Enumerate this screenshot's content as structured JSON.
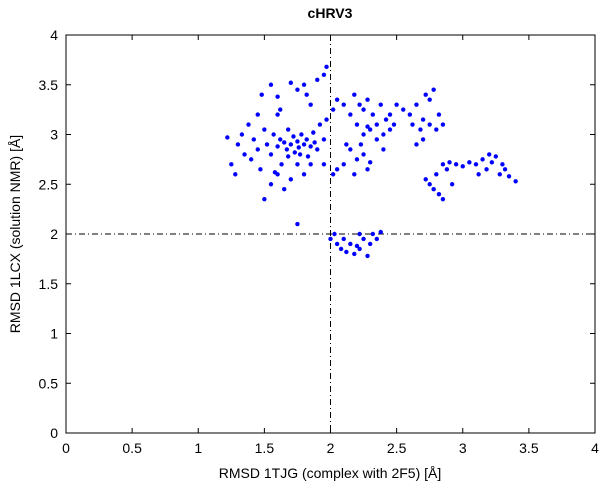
{
  "chart_data": {
    "type": "scatter",
    "title": "cHRV3",
    "x_label": "RMSD 1TJG (complex with 2F5) [Å]",
    "y_label": "RMSD 1LCX (solution NMR) [Å]",
    "color": "#0000ff",
    "xlim": [
      0,
      4
    ],
    "ylim": [
      0,
      4
    ],
    "xticks": [
      0,
      0.5,
      1,
      1.5,
      2,
      2.5,
      3,
      3.5,
      4
    ],
    "yticks": [
      0,
      0.5,
      1,
      1.5,
      2,
      2.5,
      3,
      3.5,
      4
    ],
    "reference_lines": {
      "x": 2,
      "y": 2
    },
    "x": [
      1.22,
      1.25,
      1.28,
      1.3,
      1.33,
      1.35,
      1.38,
      1.4,
      1.42,
      1.45,
      1.47,
      1.5,
      1.52,
      1.55,
      1.57,
      1.6,
      1.62,
      1.63,
      1.65,
      1.67,
      1.68,
      1.7,
      1.72,
      1.73,
      1.75,
      1.76,
      1.78,
      1.8,
      1.82,
      1.83,
      1.85,
      1.87,
      1.88,
      1.9,
      1.92,
      1.95,
      1.97,
      1.6,
      1.55,
      1.65,
      1.7,
      1.8,
      1.45,
      1.5,
      1.6,
      1.75,
      1.85,
      1.95,
      1.75,
      1.58,
      1.68,
      1.77,
      1.48,
      1.55,
      1.6,
      1.7,
      1.75,
      1.8,
      1.82,
      1.9,
      1.95,
      1.97,
      1.85,
      1.62,
      2.02,
      2.05,
      2.1,
      2.15,
      2.18,
      2.2,
      2.22,
      2.25,
      2.28,
      2.3,
      2.32,
      2.35,
      2.38,
      2.4,
      2.42,
      2.45,
      2.25,
      2.28,
      2.35,
      2.05,
      2.1,
      2.15,
      2.18,
      2.2,
      2.23,
      2.25,
      2.28,
      2.3,
      2.12,
      2.02,
      2.4,
      2.45,
      2.5,
      2.55,
      2.48,
      2.6,
      2.62,
      2.65,
      2.68,
      2.7,
      2.72,
      2.75,
      2.78,
      2.8,
      2.82,
      2.85,
      2.7,
      2.75,
      2.65,
      2.72,
      2.75,
      2.78,
      2.8,
      2.82,
      2.85,
      2.88,
      2.9,
      2.95,
      3.0,
      3.05,
      3.1,
      3.15,
      3.18,
      3.2,
      3.22,
      3.25,
      3.28,
      3.3,
      3.32,
      3.35,
      3.4,
      2.92,
      3.12,
      2.85,
      2.0,
      2.03,
      2.05,
      2.08,
      2.1,
      2.12,
      2.15,
      2.18,
      2.2,
      2.22,
      2.25,
      2.28,
      2.3,
      2.32,
      2.35,
      2.38,
      2.22
    ],
    "y": [
      2.97,
      2.7,
      2.6,
      2.9,
      3.0,
      2.8,
      3.1,
      2.75,
      2.95,
      2.85,
      2.65,
      3.05,
      2.9,
      2.8,
      3.0,
      2.88,
      2.95,
      2.7,
      2.92,
      2.85,
      3.05,
      2.9,
      2.98,
      2.82,
      2.93,
      2.87,
      3.0,
      2.9,
      2.95,
      2.78,
      2.88,
      3.02,
      2.92,
      2.85,
      3.1,
      2.95,
      3.15,
      2.6,
      2.5,
      2.45,
      2.55,
      2.6,
      3.2,
      2.35,
      3.2,
      2.7,
      2.7,
      2.7,
      2.1,
      2.62,
      2.78,
      2.8,
      3.4,
      3.5,
      3.38,
      3.52,
      3.45,
      3.5,
      3.4,
      3.55,
      3.6,
      3.68,
      3.3,
      3.25,
      3.25,
      3.35,
      3.3,
      3.2,
      3.4,
      3.1,
      3.3,
      3.25,
      3.35,
      3.05,
      3.2,
      3.1,
      3.3,
      3.0,
      3.15,
      3.05,
      3.0,
      3.08,
      2.95,
      2.65,
      2.7,
      2.85,
      2.6,
      2.75,
      2.9,
      2.8,
      2.65,
      2.72,
      2.9,
      2.6,
      2.85,
      3.2,
      3.3,
      3.25,
      3.1,
      3.2,
      3.1,
      3.3,
      3.05,
      3.15,
      3.4,
      3.1,
      3.45,
      3.05,
      3.2,
      3.1,
      2.95,
      3.35,
      2.9,
      2.55,
      2.5,
      2.45,
      2.6,
      2.4,
      2.7,
      2.65,
      2.72,
      2.7,
      2.68,
      2.72,
      2.7,
      2.75,
      2.65,
      2.8,
      2.72,
      2.78,
      2.6,
      2.7,
      2.65,
      2.58,
      2.53,
      2.5,
      2.6,
      2.35,
      1.95,
      2.0,
      1.9,
      1.85,
      1.95,
      1.82,
      1.9,
      1.8,
      1.88,
      1.85,
      1.95,
      1.78,
      1.9,
      2.0,
      1.95,
      2.02,
      2.0
    ]
  }
}
